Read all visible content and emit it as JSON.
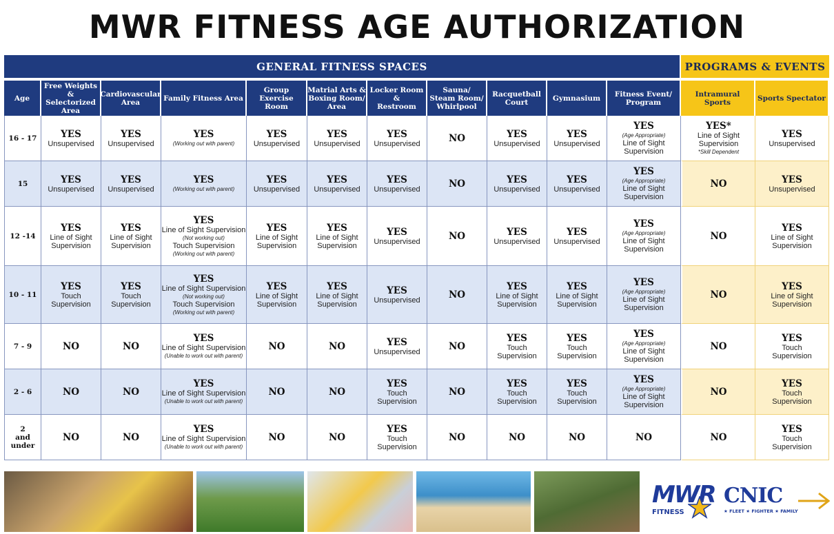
{
  "title": "MWR FITNESS AGE AUTHORIZATION",
  "groups": [
    {
      "label": "GENERAL FITNESS SPACES",
      "span": 10,
      "style": "general"
    },
    {
      "label": "PROGRAMS & EVENTS",
      "span": 3,
      "style": "program"
    }
  ],
  "table": {
    "columns": [
      [
        "Age"
      ],
      [
        "Free Weights",
        "& Selectorized",
        "Area"
      ],
      [
        "Cardiovascular",
        "Area"
      ],
      [
        "Family Fitness Area"
      ],
      [
        "Group Exercise",
        "Room"
      ],
      [
        "Matrial Arts &",
        "Boxing Room/",
        "Area"
      ],
      [
        "Locker Room &",
        "Restroom"
      ],
      [
        "Sauna/",
        "Steam Room/",
        "Whirlpool"
      ],
      [
        "Racquetball",
        "Court"
      ],
      [
        "Gymnasium"
      ],
      [
        "Fitness Event/",
        "Program"
      ],
      [
        "Intramural Sports"
      ],
      [
        "Sports Spectator"
      ]
    ],
    "rows": [
      {
        "age": [
          "16 - 17"
        ],
        "cells": [
          [
            {
              "t": "YES",
              "s": "m"
            },
            {
              "t": "Unsupervised",
              "s": "s"
            }
          ],
          [
            {
              "t": "YES",
              "s": "m"
            },
            {
              "t": "Unsupervised",
              "s": "s"
            }
          ],
          [
            {
              "t": "YES",
              "s": "m"
            },
            {
              "t": "(Working out with parent)",
              "s": "n"
            }
          ],
          [
            {
              "t": "YES",
              "s": "m"
            },
            {
              "t": "Unsupervised",
              "s": "s"
            }
          ],
          [
            {
              "t": "YES",
              "s": "m"
            },
            {
              "t": "Unsupervised",
              "s": "s"
            }
          ],
          [
            {
              "t": "YES",
              "s": "m"
            },
            {
              "t": "Unsupervised",
              "s": "s"
            }
          ],
          [
            {
              "t": "NO",
              "s": "m"
            }
          ],
          [
            {
              "t": "YES",
              "s": "m"
            },
            {
              "t": "Unsupervised",
              "s": "s"
            }
          ],
          [
            {
              "t": "YES",
              "s": "m"
            },
            {
              "t": "Unsupervised",
              "s": "s"
            }
          ],
          [
            {
              "t": "YES",
              "s": "m"
            },
            {
              "t": "(Age Appropriate)",
              "s": "n"
            },
            {
              "t": "Line of Sight",
              "s": "s"
            },
            {
              "t": "Supervision",
              "s": "s"
            }
          ],
          [
            {
              "t": "YES*",
              "s": "m"
            },
            {
              "t": "Line of Sight",
              "s": "s"
            },
            {
              "t": "Supervision",
              "s": "s"
            },
            {
              "t": "*Skill Dependent",
              "s": "n"
            }
          ],
          [
            {
              "t": "YES",
              "s": "m"
            },
            {
              "t": "Unsupervised",
              "s": "s"
            }
          ]
        ]
      },
      {
        "age": [
          "15"
        ],
        "cells": [
          [
            {
              "t": "YES",
              "s": "m"
            },
            {
              "t": "Unsupervised",
              "s": "s"
            }
          ],
          [
            {
              "t": "YES",
              "s": "m"
            },
            {
              "t": "Unsupervised",
              "s": "s"
            }
          ],
          [
            {
              "t": "YES",
              "s": "m"
            },
            {
              "t": "(Working out with parent)",
              "s": "n"
            }
          ],
          [
            {
              "t": "YES",
              "s": "m"
            },
            {
              "t": "Unsupervised",
              "s": "s"
            }
          ],
          [
            {
              "t": "YES",
              "s": "m"
            },
            {
              "t": "Unsupervised",
              "s": "s"
            }
          ],
          [
            {
              "t": "YES",
              "s": "m"
            },
            {
              "t": "Unsupervised",
              "s": "s"
            }
          ],
          [
            {
              "t": "NO",
              "s": "m"
            }
          ],
          [
            {
              "t": "YES",
              "s": "m"
            },
            {
              "t": "Unsupervised",
              "s": "s"
            }
          ],
          [
            {
              "t": "YES",
              "s": "m"
            },
            {
              "t": "Unsupervised",
              "s": "s"
            }
          ],
          [
            {
              "t": "YES",
              "s": "m"
            },
            {
              "t": "(Age Appropriate)",
              "s": "n"
            },
            {
              "t": "Line of Sight",
              "s": "s"
            },
            {
              "t": "Supervision",
              "s": "s"
            }
          ],
          [
            {
              "t": "NO",
              "s": "m"
            }
          ],
          [
            {
              "t": "YES",
              "s": "m"
            },
            {
              "t": "Unsupervised",
              "s": "s"
            }
          ]
        ]
      },
      {
        "age": [
          "12 -14"
        ],
        "cells": [
          [
            {
              "t": "YES",
              "s": "m"
            },
            {
              "t": "Line of Sight",
              "s": "s"
            },
            {
              "t": "Supervision",
              "s": "s"
            }
          ],
          [
            {
              "t": "YES",
              "s": "m"
            },
            {
              "t": "Line of Sight",
              "s": "s"
            },
            {
              "t": "Supervision",
              "s": "s"
            }
          ],
          [
            {
              "t": "YES",
              "s": "m"
            },
            {
              "t": "Line of Sight Supervision",
              "s": "s"
            },
            {
              "t": "(Not working out)",
              "s": "n"
            },
            {
              "t": "Touch Supervision",
              "s": "s"
            },
            {
              "t": "(Working out with parent)",
              "s": "n"
            }
          ],
          [
            {
              "t": "YES",
              "s": "m"
            },
            {
              "t": "Line of Sight",
              "s": "s"
            },
            {
              "t": "Supervision",
              "s": "s"
            }
          ],
          [
            {
              "t": "YES",
              "s": "m"
            },
            {
              "t": "Line of Sight",
              "s": "s"
            },
            {
              "t": "Supervision",
              "s": "s"
            }
          ],
          [
            {
              "t": "YES",
              "s": "m"
            },
            {
              "t": "Unsupervised",
              "s": "s"
            }
          ],
          [
            {
              "t": "NO",
              "s": "m"
            }
          ],
          [
            {
              "t": "YES",
              "s": "m"
            },
            {
              "t": "Unsupervised",
              "s": "s"
            }
          ],
          [
            {
              "t": "YES",
              "s": "m"
            },
            {
              "t": "Unsupervised",
              "s": "s"
            }
          ],
          [
            {
              "t": "YES",
              "s": "m"
            },
            {
              "t": "(Age Appropriate)",
              "s": "n"
            },
            {
              "t": "Line of Sight",
              "s": "s"
            },
            {
              "t": "Supervision",
              "s": "s"
            }
          ],
          [
            {
              "t": "NO",
              "s": "m"
            }
          ],
          [
            {
              "t": "YES",
              "s": "m"
            },
            {
              "t": "Line of Sight",
              "s": "s"
            },
            {
              "t": "Supervision",
              "s": "s"
            }
          ]
        ]
      },
      {
        "age": [
          "10 - 11"
        ],
        "cells": [
          [
            {
              "t": "YES",
              "s": "m"
            },
            {
              "t": "Touch",
              "s": "s"
            },
            {
              "t": "Supervision",
              "s": "s"
            }
          ],
          [
            {
              "t": "YES",
              "s": "m"
            },
            {
              "t": "Touch",
              "s": "s"
            },
            {
              "t": "Supervision",
              "s": "s"
            }
          ],
          [
            {
              "t": "YES",
              "s": "m"
            },
            {
              "t": "Line of Sight Supervision",
              "s": "s"
            },
            {
              "t": "(Not working out)",
              "s": "n"
            },
            {
              "t": "Touch Supervision",
              "s": "s"
            },
            {
              "t": "(Working out with parent)",
              "s": "n"
            }
          ],
          [
            {
              "t": "YES",
              "s": "m"
            },
            {
              "t": "Line of Sight",
              "s": "s"
            },
            {
              "t": "Supervision",
              "s": "s"
            }
          ],
          [
            {
              "t": "YES",
              "s": "m"
            },
            {
              "t": "Line of Sight",
              "s": "s"
            },
            {
              "t": "Supervision",
              "s": "s"
            }
          ],
          [
            {
              "t": "YES",
              "s": "m"
            },
            {
              "t": "Unsupervised",
              "s": "s"
            }
          ],
          [
            {
              "t": "NO",
              "s": "m"
            }
          ],
          [
            {
              "t": "YES",
              "s": "m"
            },
            {
              "t": "Line of Sight",
              "s": "s"
            },
            {
              "t": "Supervision",
              "s": "s"
            }
          ],
          [
            {
              "t": "YES",
              "s": "m"
            },
            {
              "t": "Line of Sight",
              "s": "s"
            },
            {
              "t": "Supervision",
              "s": "s"
            }
          ],
          [
            {
              "t": "YES",
              "s": "m"
            },
            {
              "t": "(Age Appropriate)",
              "s": "n"
            },
            {
              "t": "Line of Sight",
              "s": "s"
            },
            {
              "t": "Supervision",
              "s": "s"
            }
          ],
          [
            {
              "t": "NO",
              "s": "m"
            }
          ],
          [
            {
              "t": "YES",
              "s": "m"
            },
            {
              "t": "Line of Sight",
              "s": "s"
            },
            {
              "t": "Supervision",
              "s": "s"
            }
          ]
        ]
      },
      {
        "age": [
          "7 - 9"
        ],
        "cells": [
          [
            {
              "t": "NO",
              "s": "m"
            }
          ],
          [
            {
              "t": "NO",
              "s": "m"
            }
          ],
          [
            {
              "t": "YES",
              "s": "m"
            },
            {
              "t": "Line of Sight Supervision",
              "s": "s"
            },
            {
              "t": "(Unable to work out with parent)",
              "s": "n"
            }
          ],
          [
            {
              "t": "NO",
              "s": "m"
            }
          ],
          [
            {
              "t": "NO",
              "s": "m"
            }
          ],
          [
            {
              "t": "YES",
              "s": "m"
            },
            {
              "t": "Unsupervised",
              "s": "s"
            }
          ],
          [
            {
              "t": "NO",
              "s": "m"
            }
          ],
          [
            {
              "t": "YES",
              "s": "m"
            },
            {
              "t": "Touch",
              "s": "s"
            },
            {
              "t": "Supervision",
              "s": "s"
            }
          ],
          [
            {
              "t": "YES",
              "s": "m"
            },
            {
              "t": "Touch",
              "s": "s"
            },
            {
              "t": "Supervision",
              "s": "s"
            }
          ],
          [
            {
              "t": "YES",
              "s": "m"
            },
            {
              "t": "(Age Appropriate)",
              "s": "n"
            },
            {
              "t": "Line of Sight",
              "s": "s"
            },
            {
              "t": "Supervision",
              "s": "s"
            }
          ],
          [
            {
              "t": "NO",
              "s": "m"
            }
          ],
          [
            {
              "t": "YES",
              "s": "m"
            },
            {
              "t": "Touch",
              "s": "s"
            },
            {
              "t": "Supervision",
              "s": "s"
            }
          ]
        ]
      },
      {
        "age": [
          "2 - 6"
        ],
        "cells": [
          [
            {
              "t": "NO",
              "s": "m"
            }
          ],
          [
            {
              "t": "NO",
              "s": "m"
            }
          ],
          [
            {
              "t": "YES",
              "s": "m"
            },
            {
              "t": "Line of Sight Supervision",
              "s": "s"
            },
            {
              "t": "(Unable to work out with parent)",
              "s": "n"
            }
          ],
          [
            {
              "t": "NO",
              "s": "m"
            }
          ],
          [
            {
              "t": "NO",
              "s": "m"
            }
          ],
          [
            {
              "t": "YES",
              "s": "m"
            },
            {
              "t": "Touch Supervision",
              "s": "s"
            }
          ],
          [
            {
              "t": "NO",
              "s": "m"
            }
          ],
          [
            {
              "t": "YES",
              "s": "m"
            },
            {
              "t": "Touch",
              "s": "s"
            },
            {
              "t": "Supervision",
              "s": "s"
            }
          ],
          [
            {
              "t": "YES",
              "s": "m"
            },
            {
              "t": "Touch",
              "s": "s"
            },
            {
              "t": "Supervision",
              "s": "s"
            }
          ],
          [
            {
              "t": "YES",
              "s": "m"
            },
            {
              "t": "(Age Appropriate)",
              "s": "n"
            },
            {
              "t": "Line of Sight",
              "s": "s"
            },
            {
              "t": "Supervision",
              "s": "s"
            }
          ],
          [
            {
              "t": "NO",
              "s": "m"
            }
          ],
          [
            {
              "t": "YES",
              "s": "m"
            },
            {
              "t": "Touch",
              "s": "s"
            },
            {
              "t": "Supervision",
              "s": "s"
            }
          ]
        ]
      },
      {
        "age": [
          "2",
          "and under"
        ],
        "cells": [
          [
            {
              "t": "NO",
              "s": "m"
            }
          ],
          [
            {
              "t": "NO",
              "s": "m"
            }
          ],
          [
            {
              "t": "YES",
              "s": "m"
            },
            {
              "t": "Line of Sight Supervision",
              "s": "s"
            },
            {
              "t": "(Unable to work out with parent)",
              "s": "n"
            }
          ],
          [
            {
              "t": "NO",
              "s": "m"
            }
          ],
          [
            {
              "t": "NO",
              "s": "m"
            }
          ],
          [
            {
              "t": "YES",
              "s": "m"
            },
            {
              "t": "Touch Supervision",
              "s": "s"
            }
          ],
          [
            {
              "t": "NO",
              "s": "m"
            }
          ],
          [
            {
              "t": "NO",
              "s": "m"
            }
          ],
          [
            {
              "t": "NO",
              "s": "m"
            }
          ],
          [
            {
              "t": "NO",
              "s": "m"
            }
          ],
          [
            {
              "t": "NO",
              "s": "m"
            }
          ],
          [
            {
              "t": "YES",
              "s": "m"
            },
            {
              "t": "Touch",
              "s": "s"
            },
            {
              "t": "Supervision",
              "s": "s"
            }
          ]
        ]
      }
    ]
  },
  "logos": {
    "mwr": "MWR",
    "mwr_sub": "FITNESS",
    "cnic": "CNIC",
    "cnic_sub": "★ FLEET ★ FIGHTER ★ FAMILY"
  }
}
